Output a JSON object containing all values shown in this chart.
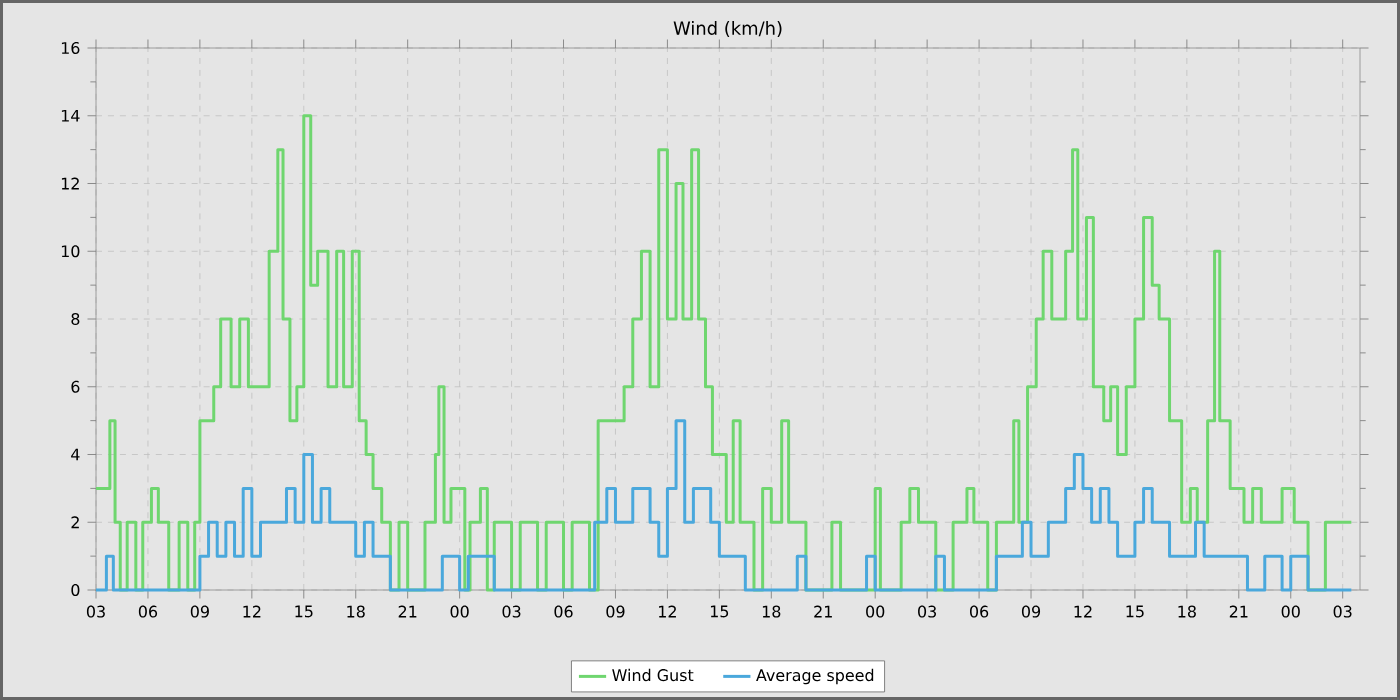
{
  "chart_data": {
    "type": "step",
    "title": "Wind (km/h)",
    "xlim": [
      3,
      76
    ],
    "ylim": [
      0,
      16
    ],
    "yticks": [
      0,
      2,
      4,
      6,
      8,
      10,
      12,
      14,
      16
    ],
    "xticks": [
      {
        "value": 3,
        "label": "03"
      },
      {
        "value": 6,
        "label": "06"
      },
      {
        "value": 9,
        "label": "09"
      },
      {
        "value": 12,
        "label": "12"
      },
      {
        "value": 15,
        "label": "15"
      },
      {
        "value": 18,
        "label": "18"
      },
      {
        "value": 21,
        "label": "21"
      },
      {
        "value": 24,
        "label": "00"
      },
      {
        "value": 27,
        "label": "03"
      },
      {
        "value": 30,
        "label": "06"
      },
      {
        "value": 33,
        "label": "09"
      },
      {
        "value": 36,
        "label": "12"
      },
      {
        "value": 39,
        "label": "15"
      },
      {
        "value": 42,
        "label": "18"
      },
      {
        "value": 45,
        "label": "21"
      },
      {
        "value": 48,
        "label": "00"
      },
      {
        "value": 51,
        "label": "03"
      },
      {
        "value": 54,
        "label": "06"
      },
      {
        "value": 57,
        "label": "09"
      },
      {
        "value": 60,
        "label": "12"
      },
      {
        "value": 63,
        "label": "15"
      },
      {
        "value": 66,
        "label": "18"
      },
      {
        "value": 69,
        "label": "21"
      },
      {
        "value": 72,
        "label": "00"
      },
      {
        "value": 75,
        "label": "03"
      }
    ],
    "grid": true,
    "legend": "bottom",
    "marker": "none",
    "line_style": "solid",
    "series": [
      {
        "name": "Wind Gust",
        "color": "#6fd66f",
        "x": [
          3,
          3.8,
          4.1,
          4.4,
          4.8,
          5.3,
          5.7,
          6.2,
          6.6,
          7.2,
          7.8,
          8.3,
          8.7,
          9.0,
          9.8,
          10.2,
          10.8,
          11.3,
          11.8,
          12.4,
          13.0,
          13.5,
          13.8,
          14.2,
          14.6,
          15.0,
          15.4,
          15.8,
          16.4,
          16.9,
          17.3,
          17.8,
          18.2,
          18.6,
          19.0,
          19.5,
          20.0,
          20.5,
          21.0,
          22.0,
          22.6,
          22.8,
          23.1,
          23.5,
          24.3,
          24.6,
          25.2,
          25.6,
          26.0,
          27,
          27.5,
          28.5,
          29,
          30,
          30.5,
          31.5,
          32.0,
          33.5,
          34.0,
          34.5,
          35,
          35.5,
          36,
          36.5,
          36.9,
          37.4,
          37.8,
          38.2,
          38.6,
          39.4,
          39.8,
          40.2,
          41,
          41.5,
          42,
          42.6,
          43,
          44,
          45.5,
          46,
          48,
          48.3,
          49.5,
          50,
          50.5,
          51.5,
          52.5,
          53.3,
          53.7,
          54.5,
          55,
          56,
          56.3,
          56.8,
          57.3,
          57.7,
          58.2,
          59,
          59.4,
          59.7,
          60.2,
          60.6,
          61.2,
          61.6,
          62,
          62.5,
          63,
          63.5,
          64,
          64.4,
          65,
          65.7,
          66.2,
          66.6,
          67.2,
          67.6,
          67.9,
          68.5,
          69.3,
          69.8,
          70.3,
          71.5,
          72.2,
          73.0,
          74,
          75.5
        ],
        "values": [
          3,
          5,
          2,
          0,
          2,
          0,
          2,
          3,
          2,
          0,
          2,
          0,
          2,
          5,
          6,
          8,
          6,
          8,
          6,
          6,
          10,
          13,
          8,
          5,
          6,
          14,
          9,
          10,
          6,
          10,
          6,
          10,
          5,
          4,
          3,
          2,
          0,
          2,
          0,
          2,
          4,
          6,
          2,
          3,
          0,
          2,
          3,
          0,
          2,
          0,
          2,
          0,
          2,
          0,
          2,
          0,
          5,
          6,
          8,
          10,
          6,
          13,
          8,
          12,
          8,
          13,
          8,
          6,
          4,
          2,
          5,
          2,
          0,
          3,
          2,
          5,
          2,
          0,
          2,
          0,
          3,
          0,
          2,
          3,
          2,
          0,
          2,
          3,
          2,
          0,
          2,
          5,
          2,
          6,
          8,
          10,
          8,
          10,
          13,
          8,
          11,
          6,
          5,
          6,
          4,
          6,
          8,
          11,
          9,
          8,
          5,
          2,
          3,
          2,
          5,
          10,
          5,
          3,
          2,
          3,
          2,
          3,
          2,
          0,
          2,
          2
        ]
      },
      {
        "name": "Average speed",
        "color": "#4aa8dc",
        "x": [
          3,
          3.6,
          4.0,
          9.0,
          9.5,
          10,
          10.5,
          11,
          11.5,
          12,
          12.5,
          14,
          14.5,
          15,
          15.5,
          16,
          16.5,
          18,
          18.5,
          19,
          20,
          23,
          24,
          24.5,
          26,
          31.8,
          32.5,
          33,
          34,
          35,
          35.5,
          36,
          36.5,
          37,
          37.5,
          38.5,
          39,
          40,
          40.5,
          43.5,
          44,
          47.5,
          48,
          51.5,
          52,
          55,
          56.5,
          57,
          58,
          59,
          59.5,
          60,
          60.5,
          61,
          61.5,
          62,
          63,
          63.5,
          64,
          65,
          66.5,
          67,
          68,
          69,
          69.5,
          70.5,
          71.5,
          72,
          73,
          75.5
        ],
        "values": [
          0,
          1,
          0,
          1,
          2,
          1,
          2,
          1,
          3,
          1,
          2,
          3,
          2,
          4,
          2,
          3,
          2,
          1,
          2,
          1,
          0,
          1,
          0,
          1,
          0,
          2,
          3,
          2,
          3,
          2,
          1,
          3,
          5,
          2,
          3,
          2,
          1,
          1,
          0,
          1,
          0,
          1,
          0,
          1,
          0,
          1,
          2,
          1,
          2,
          3,
          4,
          3,
          2,
          3,
          2,
          1,
          2,
          3,
          2,
          1,
          2,
          1,
          1,
          1,
          0,
          1,
          0,
          1,
          0,
          0
        ]
      }
    ]
  }
}
